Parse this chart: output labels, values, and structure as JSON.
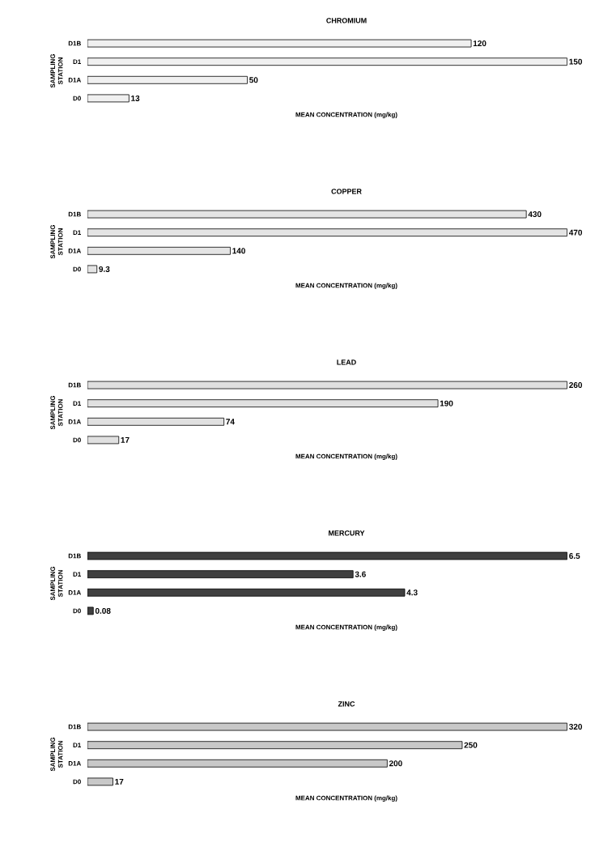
{
  "chart_data": [
    {
      "type": "bar",
      "orientation": "horizontal",
      "title": "CHROMIUM",
      "xlabel": "MEAN CONCENTRATION (mg/kg)",
      "ylabel": "SAMPLING STATION",
      "categories": [
        "D1B",
        "D1",
        "D1A",
        "D0"
      ],
      "values": [
        120,
        150,
        50,
        13
      ],
      "color": "#f0f0f0",
      "data_labels": true
    },
    {
      "type": "bar",
      "orientation": "horizontal",
      "title": "COPPER",
      "xlabel": "MEAN CONCENTRATION (mg/kg)",
      "ylabel": "SAMPLING STATION",
      "categories": [
        "D1B",
        "D1",
        "D1A",
        "D0"
      ],
      "values": [
        430,
        470,
        140,
        9.3
      ],
      "color": "#e4e4e4",
      "data_labels": true
    },
    {
      "type": "bar",
      "orientation": "horizontal",
      "title": "LEAD",
      "xlabel": "MEAN CONCENTRATION (mg/kg)",
      "ylabel": "SAMPLING STATION",
      "categories": [
        "D1B",
        "D1",
        "D1A",
        "D0"
      ],
      "values": [
        260,
        190,
        74,
        17
      ],
      "color": "#e0e0e0",
      "data_labels": true
    },
    {
      "type": "bar",
      "orientation": "horizontal",
      "title": "MERCURY",
      "xlabel": "MEAN CONCENTRATION (mg/kg)",
      "ylabel": "SAMPLING STATION",
      "categories": [
        "D1B",
        "D1",
        "D1A",
        "D0"
      ],
      "values": [
        6.5,
        3.6,
        4.3,
        0.08
      ],
      "color": "#404040",
      "data_labels": true
    },
    {
      "type": "bar",
      "orientation": "horizontal",
      "title": "ZINC",
      "xlabel": "MEAN CONCENTRATION (mg/kg)",
      "ylabel": "SAMPLING STATION",
      "categories": [
        "D1B",
        "D1",
        "D1A",
        "D0"
      ],
      "values": [
        320,
        250,
        200,
        17
      ],
      "color": "#c8c8c8",
      "data_labels": true
    }
  ]
}
